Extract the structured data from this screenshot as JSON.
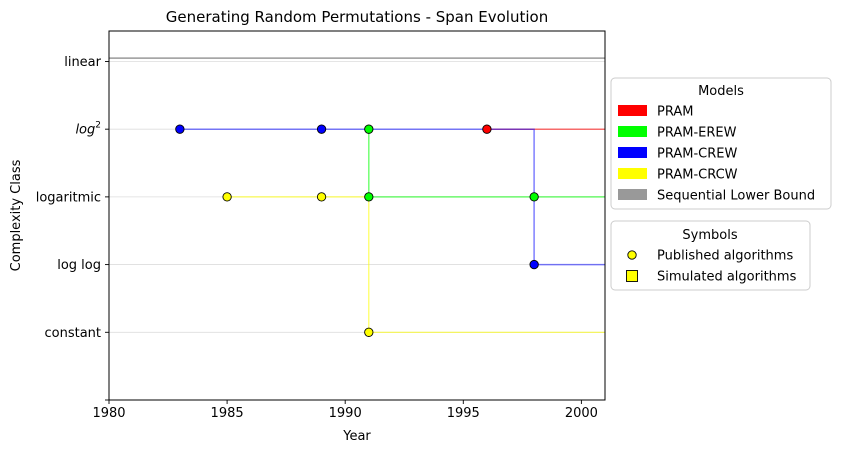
{
  "chart_data": {
    "type": "line",
    "title": "Generating Random Permutations - Span Evolution",
    "xlabel": "Year",
    "ylabel": "Complexity Class",
    "xlim": [
      1980,
      2001
    ],
    "xticks": [
      1980,
      1985,
      1990,
      1995,
      2000
    ],
    "ylim": [
      -1,
      4.45
    ],
    "yticks": [
      {
        "value": 4,
        "label": "linear",
        "math": false
      },
      {
        "value": 3,
        "label": "log",
        "sup": "2",
        "math": true
      },
      {
        "value": 2,
        "label": "logaritmic",
        "math": false
      },
      {
        "value": 1,
        "label": "log log",
        "math": false
      },
      {
        "value": 0,
        "label": "constant",
        "math": false
      }
    ],
    "grid": "horizontal",
    "legend_models": {
      "title": "Models",
      "placement": "outside-right-top",
      "entries": [
        {
          "label": "PRAM",
          "color": "#ff0000"
        },
        {
          "label": "PRAM-EREW",
          "color": "#00ff00"
        },
        {
          "label": "PRAM-CREW",
          "color": "#0000ff"
        },
        {
          "label": "PRAM-CRCW",
          "color": "#ffff00"
        },
        {
          "label": "Sequential Lower Bound",
          "color": "#999999"
        }
      ]
    },
    "legend_symbols": {
      "title": "Symbols",
      "placement": "outside-right-middle",
      "entries": [
        {
          "label": "Published algorithms",
          "marker": "circle"
        },
        {
          "label": "Simulated algorithms",
          "marker": "square"
        }
      ]
    },
    "series": [
      {
        "name": "Sequential Lower Bound",
        "color": "#999999",
        "line_alpha": 1.0,
        "line_width": 1.5,
        "steps": [
          [
            1980,
            4.05
          ],
          [
            2001,
            4.05
          ]
        ],
        "points": []
      },
      {
        "name": "PRAM",
        "color": "#ff0000",
        "line_alpha": 0.55,
        "line_width": 1.5,
        "steps": [
          [
            1996,
            3
          ],
          [
            2001,
            3
          ]
        ],
        "points": [
          [
            1996,
            3
          ]
        ]
      },
      {
        "name": "PRAM-EREW",
        "color": "#00ff00",
        "line_alpha": 0.55,
        "line_width": 1.5,
        "steps": [
          [
            1991,
            3
          ],
          [
            1991,
            2
          ],
          [
            2001,
            2
          ]
        ],
        "points": [
          [
            1991,
            3
          ],
          [
            1991,
            2
          ],
          [
            1998,
            2
          ]
        ]
      },
      {
        "name": "PRAM-CREW",
        "color": "#0000ff",
        "line_alpha": 0.5,
        "line_width": 1.5,
        "steps": [
          [
            1983,
            3
          ],
          [
            1998,
            3
          ],
          [
            1998,
            1
          ],
          [
            2001,
            1
          ]
        ],
        "points": [
          [
            1983,
            3
          ],
          [
            1989,
            3
          ],
          [
            1998,
            1
          ]
        ]
      },
      {
        "name": "PRAM-CRCW",
        "color": "#ffff00",
        "line_alpha": 0.65,
        "line_width": 1.2,
        "steps": [
          [
            1985,
            2
          ],
          [
            1991,
            2
          ],
          [
            1991,
            0
          ],
          [
            2001,
            0
          ]
        ],
        "points": [
          [
            1985,
            2
          ],
          [
            1989,
            2
          ],
          [
            1991,
            0
          ]
        ]
      }
    ]
  }
}
